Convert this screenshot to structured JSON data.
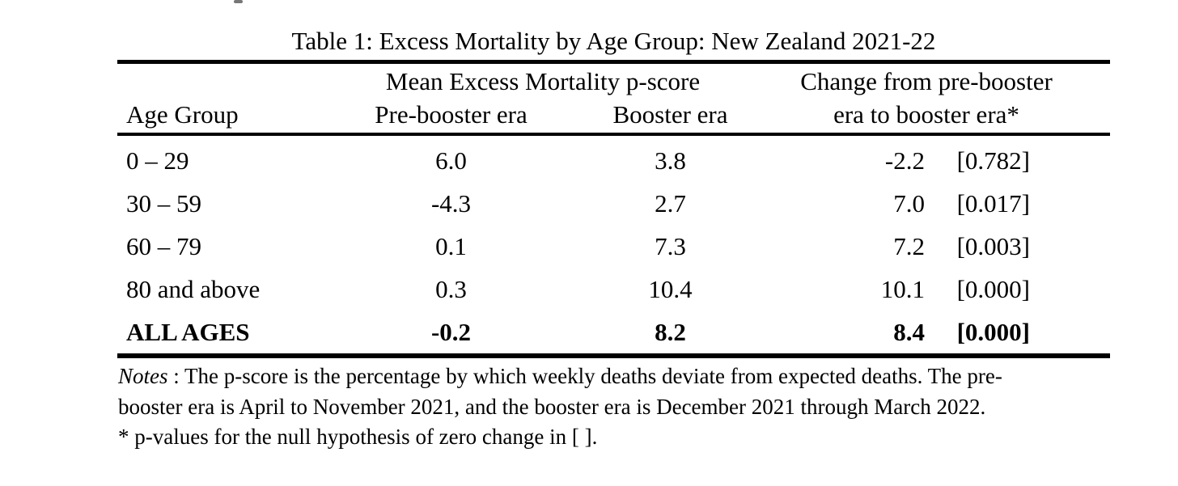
{
  "page": {
    "background": "#ffffff",
    "text_color": "#000000"
  },
  "table": {
    "title": "Table 1: Excess Mortality by Age Group: New Zealand 2021-22",
    "headers": {
      "span_mean_excess": "Mean Excess Mortality p-score",
      "span_change": "Change from pre-booster",
      "age_group": "Age Group",
      "pre_booster": "Pre-booster era",
      "booster": "Booster era",
      "change_cont": "era to booster era*"
    },
    "rows": [
      {
        "age_group": "0 – 29",
        "pre_booster": "6.0",
        "booster": "3.8",
        "change": "-2.2",
        "p_value": "[0.782]"
      },
      {
        "age_group": "30 – 59",
        "pre_booster": "-4.3",
        "booster": "2.7",
        "change": "7.0",
        "p_value": "[0.017]"
      },
      {
        "age_group": "60 – 79",
        "pre_booster": "0.1",
        "booster": "7.3",
        "change": "7.2",
        "p_value": "[0.003]"
      },
      {
        "age_group": "80 and above",
        "pre_booster": "0.3",
        "booster": "10.4",
        "change": "10.1",
        "p_value": "[0.000]"
      },
      {
        "age_group": "ALL AGES",
        "pre_booster": "-0.2",
        "booster": "8.2",
        "change": "8.4",
        "p_value": "[0.000]"
      }
    ],
    "notes": {
      "label": "Notes",
      "line1_rest": " : The p-score is the percentage by which weekly deaths deviate from expected deaths. The pre-",
      "line2": "booster era is April to November 2021, and the booster era is December 2021 through March 2022.",
      "line3": "* p-values for the null hypothesis of zero change in [ ]."
    }
  }
}
